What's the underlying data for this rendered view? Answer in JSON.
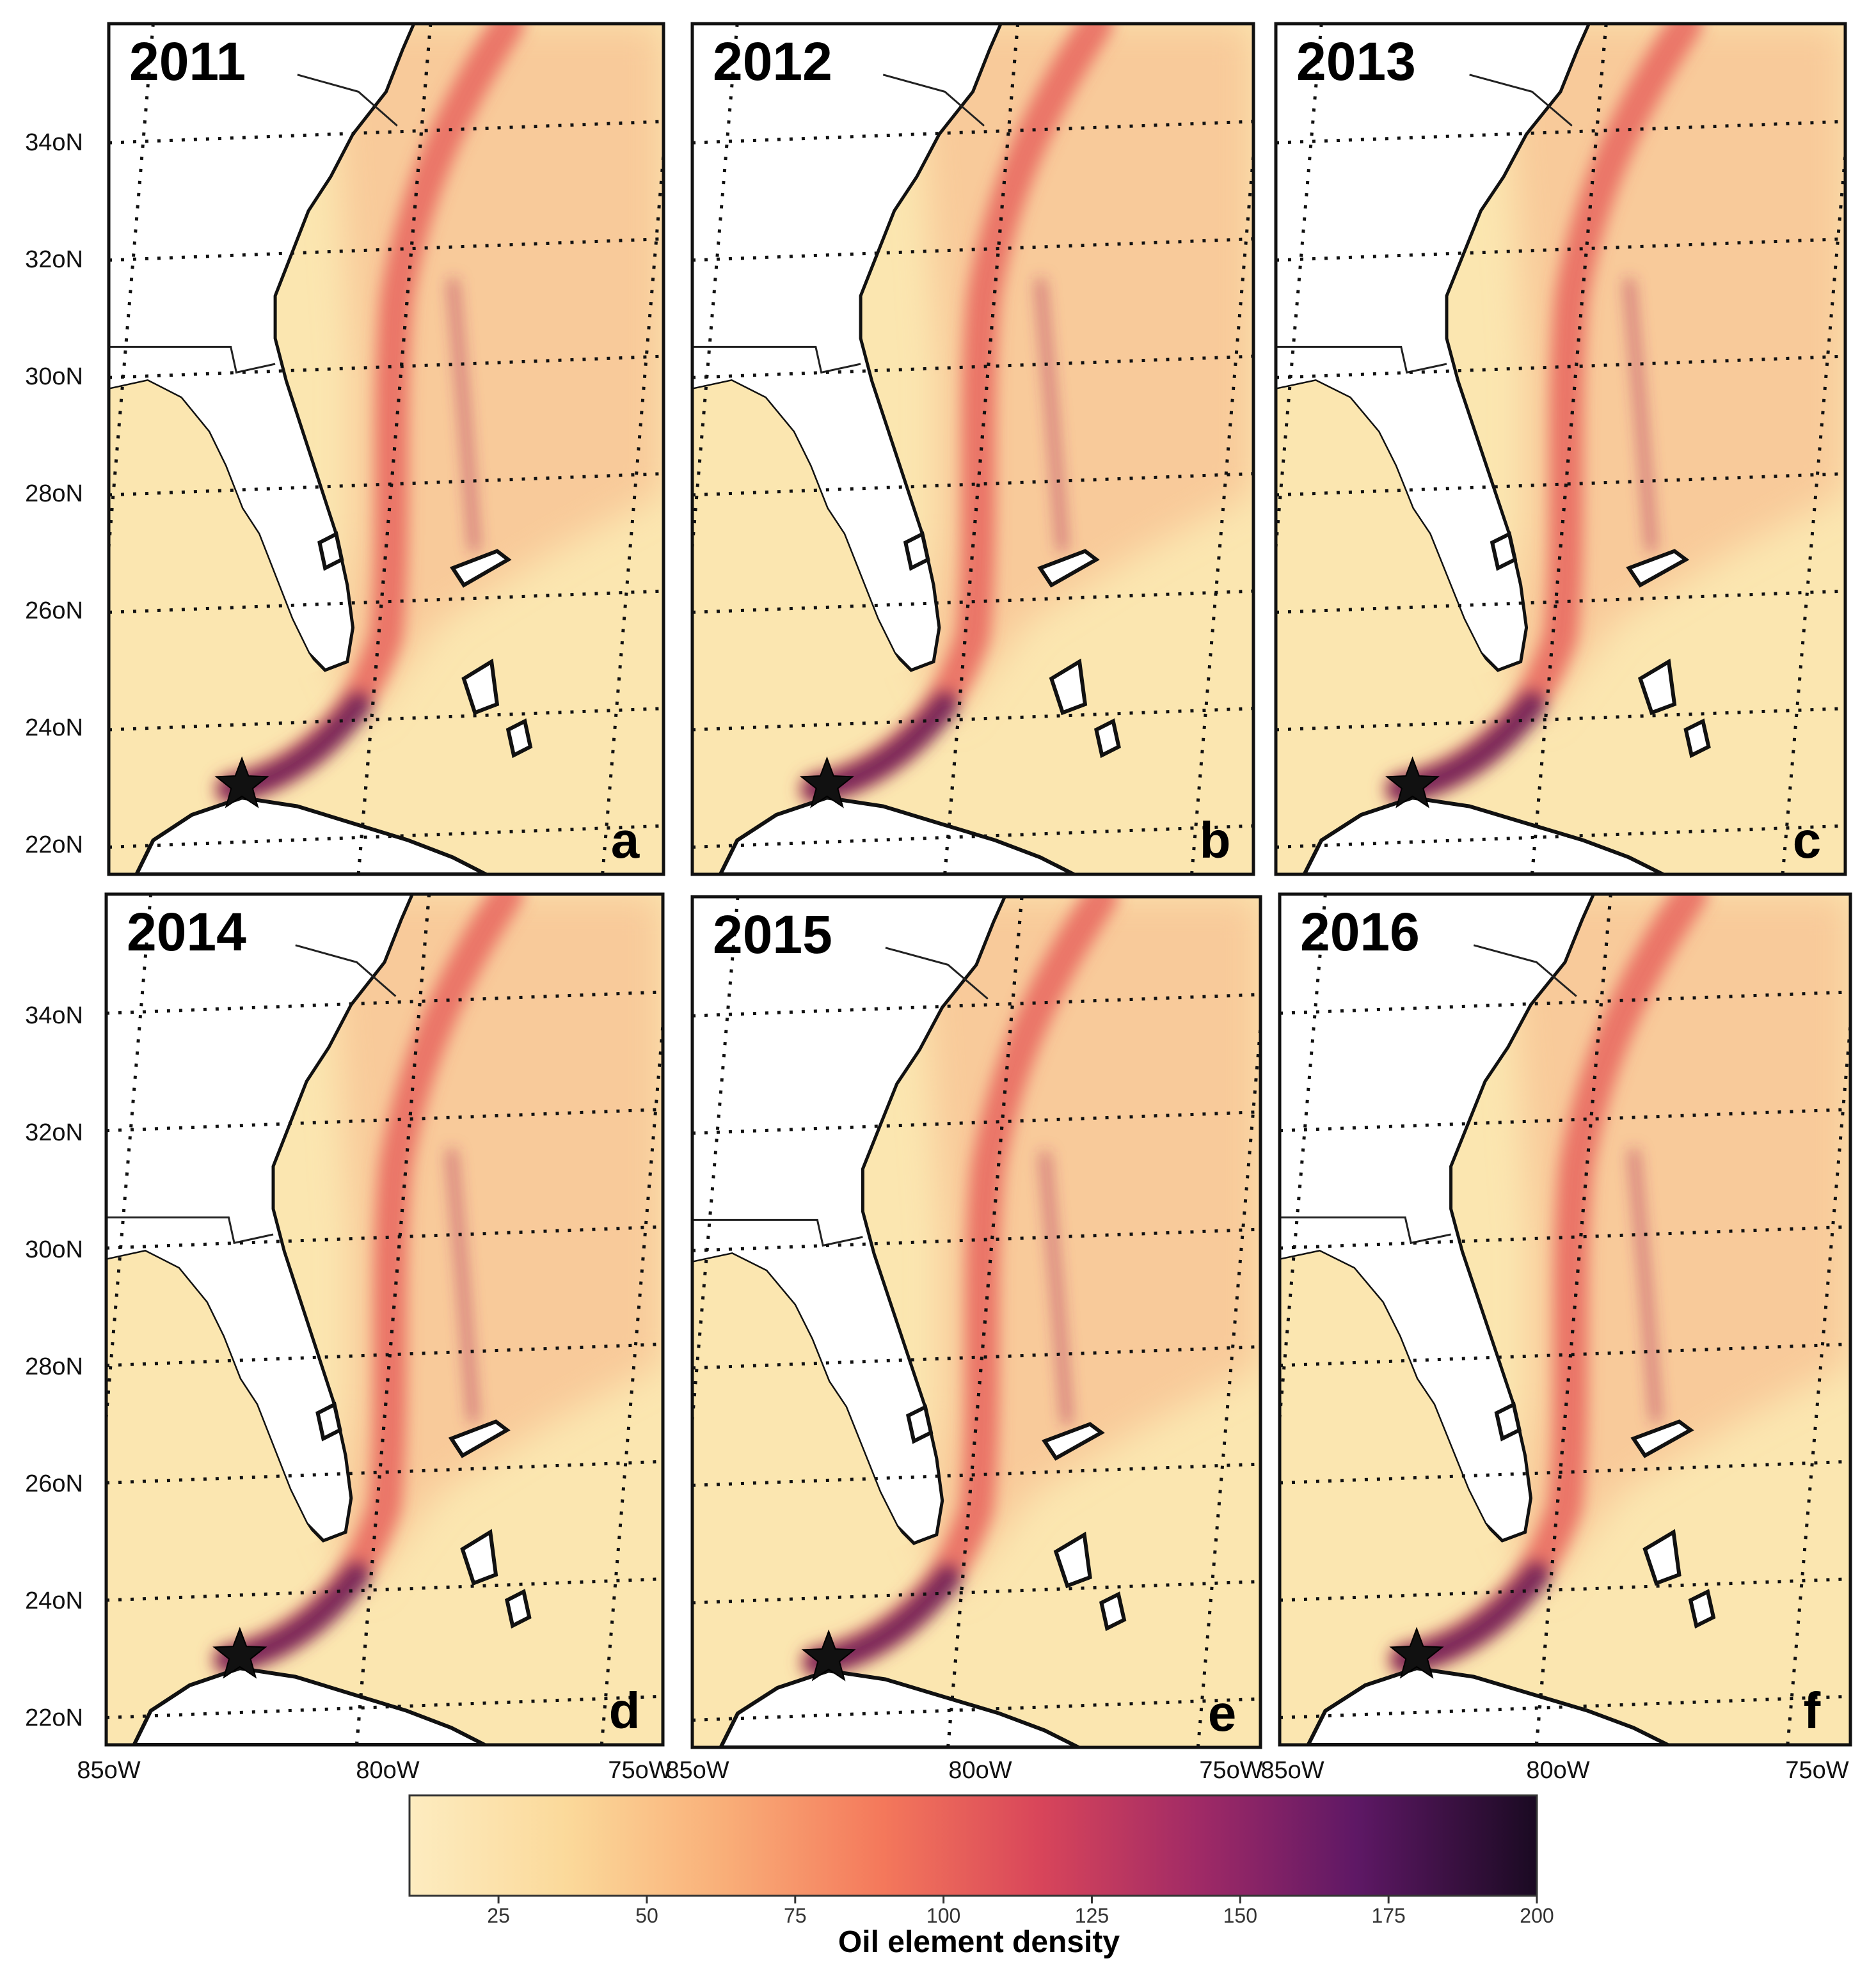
{
  "panels": [
    {
      "year": "2011",
      "letter": "a"
    },
    {
      "year": "2012",
      "letter": "b"
    },
    {
      "year": "2013",
      "letter": "c"
    },
    {
      "year": "2014",
      "letter": "d"
    },
    {
      "year": "2015",
      "letter": "e"
    },
    {
      "year": "2016",
      "letter": "f"
    }
  ],
  "lat_ticks": [
    "34oN",
    "32oN",
    "30oN",
    "28oN",
    "26oN",
    "24oN",
    "22oN"
  ],
  "lon_ticks": [
    "85oW",
    "80oW",
    "75oW"
  ],
  "colorbar": {
    "label": "Oil element density",
    "ticks": [
      "25",
      "50",
      "75",
      "100",
      "125",
      "150",
      "175",
      "200"
    ],
    "colors": [
      "#fbe6b0",
      "#f9b57d",
      "#f7825e",
      "#e65253",
      "#b52b63",
      "#7c1d6f",
      "#3d0f4a",
      "#1a0a22"
    ]
  },
  "map": {
    "ocean_color": "#fbe6b0",
    "land_color": "#ffffff",
    "plume_color": "#e65a56",
    "plume_dark_color": "#6a1a58",
    "star_color": "#111111"
  }
}
